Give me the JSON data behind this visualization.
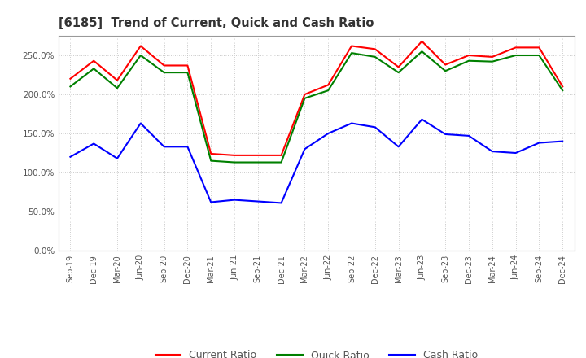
{
  "title": "[6185]  Trend of Current, Quick and Cash Ratio",
  "x_labels": [
    "Sep-19",
    "Dec-19",
    "Mar-20",
    "Jun-20",
    "Sep-20",
    "Dec-20",
    "Mar-21",
    "Jun-21",
    "Sep-21",
    "Dec-21",
    "Mar-22",
    "Jun-22",
    "Sep-22",
    "Dec-22",
    "Mar-23",
    "Jun-23",
    "Sep-23",
    "Dec-23",
    "Mar-24",
    "Jun-24",
    "Sep-24",
    "Dec-24"
  ],
  "current_ratio": [
    220,
    243,
    218,
    262,
    237,
    237,
    124,
    122,
    122,
    122,
    200,
    212,
    262,
    258,
    235,
    268,
    238,
    250,
    248,
    260,
    260,
    210
  ],
  "quick_ratio": [
    210,
    233,
    208,
    250,
    228,
    228,
    115,
    113,
    113,
    113,
    195,
    205,
    253,
    248,
    228,
    255,
    230,
    243,
    242,
    250,
    250,
    205
  ],
  "cash_ratio": [
    120,
    137,
    118,
    163,
    133,
    133,
    62,
    65,
    63,
    61,
    130,
    150,
    163,
    158,
    133,
    168,
    149,
    147,
    127,
    125,
    138,
    140
  ],
  "current_color": "#ff0000",
  "quick_color": "#008000",
  "cash_color": "#0000ff",
  "ylim": [
    0,
    275
  ],
  "yticks": [
    0,
    50,
    100,
    150,
    200,
    250
  ],
  "background_color": "#ffffff",
  "grid_color": "#bbbbbb",
  "title_color": "#333333",
  "tick_color": "#555555"
}
